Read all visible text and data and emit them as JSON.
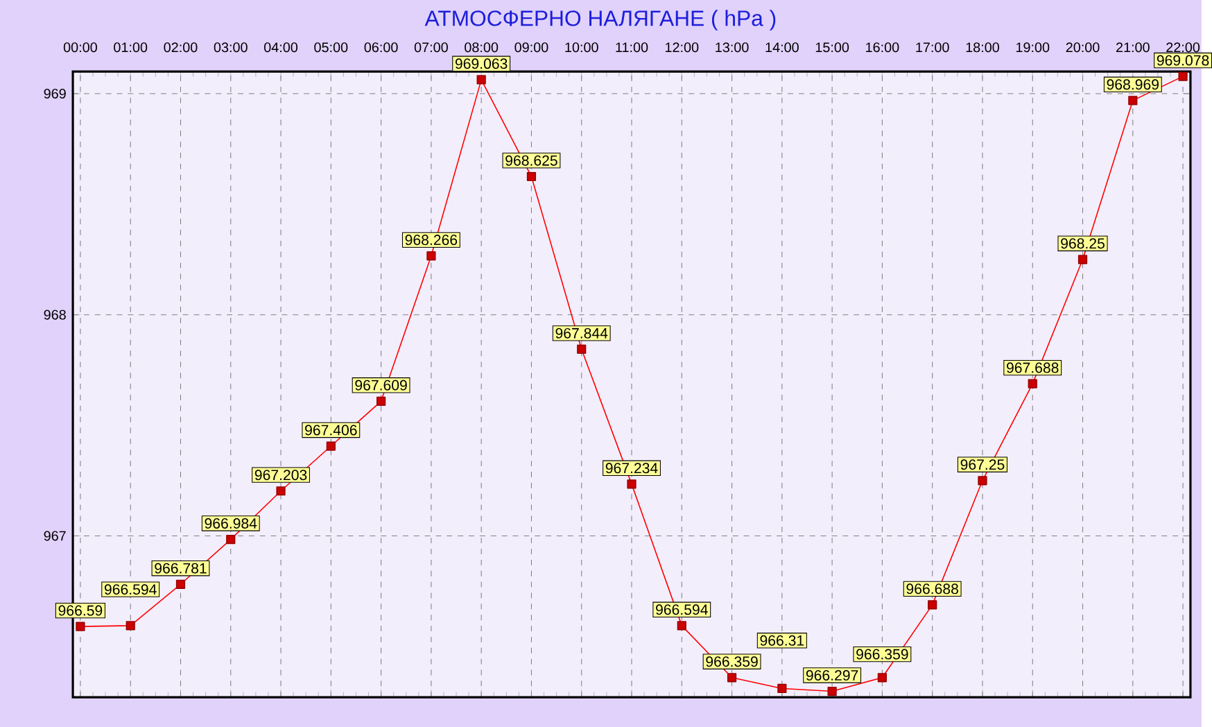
{
  "chart_data": {
    "type": "line",
    "title": "АТМОСФЕРНО НАЛЯГАНЕ  ( hPa )",
    "x": [
      0,
      1,
      2,
      3,
      4,
      5,
      6,
      7,
      8,
      9,
      10,
      11,
      12,
      13,
      14,
      15,
      16,
      17,
      18,
      19,
      20,
      21,
      22
    ],
    "series": [
      {
        "color": "#ff0000",
        "values": [
          966.59,
          966.594,
          966.781,
          966.984,
          967.203,
          967.406,
          967.609,
          968.266,
          969.063,
          968.625,
          967.844,
          967.234,
          966.594,
          966.359,
          966.31,
          966.297,
          966.359,
          966.688,
          967.25,
          967.688,
          968.25,
          968.969,
          969.078
        ],
        "value_labels": [
          "966.59",
          "966.594",
          "966.781",
          "966.984",
          "967.203",
          "967.406",
          "967.609",
          "968.266",
          "969.063",
          "968.625",
          "967.844",
          "967.234",
          "966.594",
          "966.359",
          "966.31",
          "966.297",
          "966.359",
          "966.688",
          "967.25",
          "967.688",
          "968.25",
          "968.969",
          "969.078"
        ]
      }
    ],
    "xlim": [
      -0.15,
      22.15
    ],
    "xticks": [
      {
        "value": 0,
        "label": "00:00"
      },
      {
        "value": 1,
        "label": "01:00"
      },
      {
        "value": 2,
        "label": "02:00"
      },
      {
        "value": 3,
        "label": "03:00"
      },
      {
        "value": 4,
        "label": "04:00"
      },
      {
        "value": 5,
        "label": "05:00"
      },
      {
        "value": 6,
        "label": "06:00"
      },
      {
        "value": 7,
        "label": "07:00"
      },
      {
        "value": 8,
        "label": "08:00"
      },
      {
        "value": 9,
        "label": "09:00"
      },
      {
        "value": 10,
        "label": "10:00"
      },
      {
        "value": 11,
        "label": "11:00"
      },
      {
        "value": 12,
        "label": "12:00"
      },
      {
        "value": 13,
        "label": "13:00"
      },
      {
        "value": 14,
        "label": "14:00"
      },
      {
        "value": 15,
        "label": "15:00"
      },
      {
        "value": 16,
        "label": "16:00"
      },
      {
        "value": 17,
        "label": "17:00"
      },
      {
        "value": 18,
        "label": "18:00"
      },
      {
        "value": 19,
        "label": "19:00"
      },
      {
        "value": 20,
        "label": "20:00"
      },
      {
        "value": 21,
        "label": "21:00"
      },
      {
        "value": 22,
        "label": "22:00"
      }
    ],
    "ylim": [
      966.27,
      969.1
    ],
    "yticks": [
      967,
      968,
      969
    ],
    "grid": true,
    "marker": "square",
    "line_style": "solid"
  }
}
